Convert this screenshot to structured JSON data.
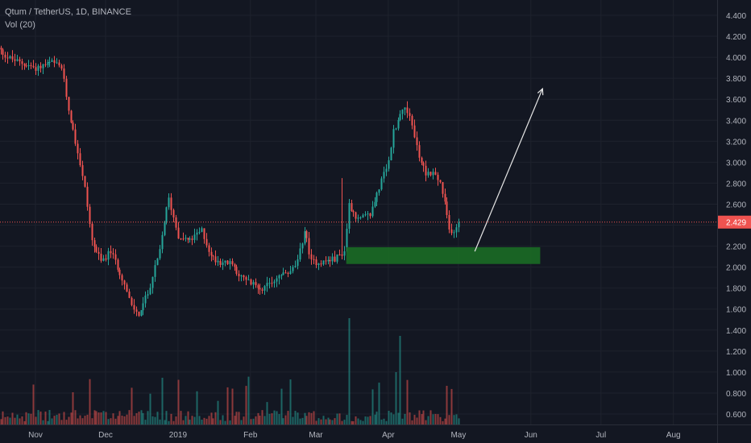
{
  "header": {
    "symbol_line": "Qtum / TetherUS, 1D, BINANCE",
    "volume_label": "Vol (20)"
  },
  "colors": {
    "background": "#131722",
    "grid": "#1e222d",
    "axis_text": "#b2b5be",
    "up": "#26a69a",
    "down": "#ef5350",
    "price_line": "#ef5350",
    "zone": "#1b6b25",
    "arrow": "#e6e6e6"
  },
  "chart_data": {
    "type": "candlestick",
    "title": "Qtum / TetherUS, 1D, BINANCE",
    "x_tick_labels": [
      "Nov",
      "Dec",
      "2019",
      "Feb",
      "Mar",
      "Apr",
      "May",
      "Jun",
      "Jul",
      "Aug"
    ],
    "y_tick_labels": [
      "4.400",
      "4.200",
      "4.000",
      "3.800",
      "3.600",
      "3.400",
      "3.200",
      "3.000",
      "2.800",
      "2.600",
      "2.400",
      "2.200",
      "2.000",
      "1.800",
      "1.600",
      "1.400",
      "1.200",
      "1.000",
      "0.800",
      "0.600"
    ],
    "y_range": [
      0.45,
      4.55
    ],
    "last_price": 2.429,
    "last_price_label": "2.429",
    "grid": true,
    "volume_indicator": "Vol (20)",
    "price_path": [
      [
        "2018-10-15",
        4.1
      ],
      [
        "2018-10-20",
        4.0
      ],
      [
        "2018-10-25",
        3.95
      ],
      [
        "2018-11-01",
        3.9
      ],
      [
        "2018-11-08",
        3.95
      ],
      [
        "2018-11-12",
        3.9
      ],
      [
        "2018-11-15",
        3.5
      ],
      [
        "2018-11-19",
        3.1
      ],
      [
        "2018-11-22",
        2.75
      ],
      [
        "2018-11-25",
        2.25
      ],
      [
        "2018-11-29",
        2.05
      ],
      [
        "2018-12-03",
        2.15
      ],
      [
        "2018-12-08",
        1.9
      ],
      [
        "2018-12-12",
        1.62
      ],
      [
        "2018-12-15",
        1.55
      ],
      [
        "2018-12-19",
        1.75
      ],
      [
        "2018-12-24",
        2.15
      ],
      [
        "2018-12-26",
        2.45
      ],
      [
        "2018-12-28",
        2.65
      ],
      [
        "2019-01-01",
        2.3
      ],
      [
        "2019-01-06",
        2.25
      ],
      [
        "2019-01-11",
        2.35
      ],
      [
        "2019-01-15",
        2.1
      ],
      [
        "2019-01-19",
        2.05
      ],
      [
        "2019-01-24",
        2.03
      ],
      [
        "2019-01-28",
        1.9
      ],
      [
        "2019-02-03",
        1.82
      ],
      [
        "2019-02-07",
        1.8
      ],
      [
        "2019-02-13",
        1.92
      ],
      [
        "2019-02-18",
        1.95
      ],
      [
        "2019-02-21",
        2.05
      ],
      [
        "2019-02-24",
        2.35
      ],
      [
        "2019-02-27",
        2.05
      ],
      [
        "2019-03-04",
        2.05
      ],
      [
        "2019-03-09",
        2.08
      ],
      [
        "2019-03-13",
        2.15
      ],
      [
        "2019-03-15",
        2.6
      ],
      [
        "2019-03-19",
        2.45
      ],
      [
        "2019-03-24",
        2.5
      ],
      [
        "2019-03-27",
        2.7
      ],
      [
        "2019-04-01",
        3.0
      ],
      [
        "2019-04-03",
        3.3
      ],
      [
        "2019-04-06",
        3.45
      ],
      [
        "2019-04-08",
        3.55
      ],
      [
        "2019-04-11",
        3.35
      ],
      [
        "2019-04-14",
        3.05
      ],
      [
        "2019-04-17",
        2.9
      ],
      [
        "2019-04-20",
        2.9
      ],
      [
        "2019-04-23",
        2.8
      ],
      [
        "2019-04-25",
        2.6
      ],
      [
        "2019-04-27",
        2.35
      ],
      [
        "2019-04-29",
        2.35
      ],
      [
        "2019-05-01",
        2.43
      ]
    ],
    "demand_zone": {
      "from": "2019-03-14",
      "to": "2019-06-05",
      "low": 2.03,
      "high": 2.19
    },
    "projection_arrow": {
      "start": [
        "2019-05-08",
        2.15
      ],
      "end": [
        "2019-06-06",
        3.7
      ]
    }
  }
}
